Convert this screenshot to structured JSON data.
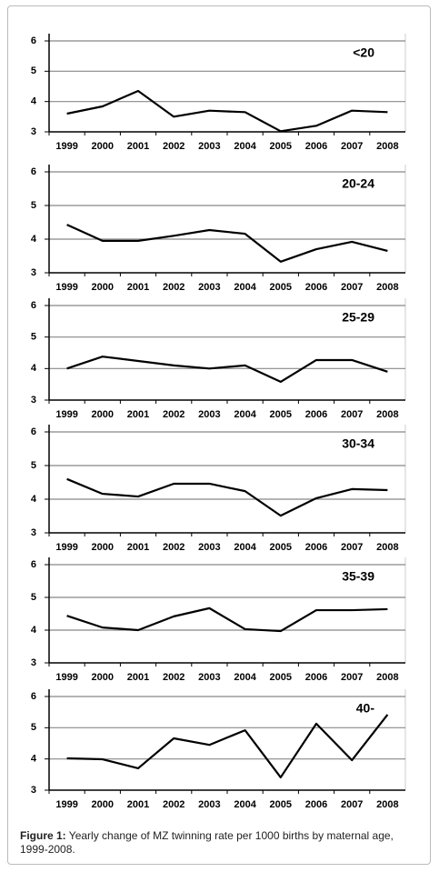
{
  "chart_data": [
    {
      "type": "line",
      "title": "<20",
      "categories": [
        "1999",
        "2000",
        "2001",
        "2002",
        "2003",
        "2004",
        "2005",
        "2006",
        "2007",
        "2008"
      ],
      "values": [
        3.6,
        3.84,
        4.35,
        3.5,
        3.7,
        3.65,
        3.02,
        3.2,
        3.7,
        3.65
      ],
      "color": "#000000",
      "ylim": [
        3,
        6
      ],
      "yticks": [
        3,
        4,
        5,
        6
      ],
      "grid": true
    },
    {
      "type": "line",
      "title": "20-24",
      "categories": [
        "1999",
        "2000",
        "2001",
        "2002",
        "2003",
        "2004",
        "2005",
        "2006",
        "2007",
        "2008"
      ],
      "values": [
        4.43,
        3.95,
        3.95,
        4.1,
        4.27,
        4.16,
        3.33,
        3.7,
        3.92,
        3.65
      ],
      "color": "#000000",
      "ylim": [
        3,
        6
      ],
      "yticks": [
        3,
        4,
        5,
        6
      ],
      "grid": true
    },
    {
      "type": "line",
      "title": "25-29",
      "categories": [
        "1999",
        "2000",
        "2001",
        "2002",
        "2003",
        "2004",
        "2005",
        "2006",
        "2007",
        "2008"
      ],
      "values": [
        4.0,
        4.38,
        4.24,
        4.1,
        4.0,
        4.1,
        3.58,
        4.27,
        4.27,
        3.9
      ],
      "color": "#000000",
      "ylim": [
        3,
        6
      ],
      "yticks": [
        3,
        4,
        5,
        6
      ],
      "grid": true
    },
    {
      "type": "line",
      "title": "30-34",
      "categories": [
        "1999",
        "2000",
        "2001",
        "2002",
        "2003",
        "2004",
        "2005",
        "2006",
        "2007",
        "2008"
      ],
      "values": [
        4.6,
        4.16,
        4.08,
        4.46,
        4.46,
        4.24,
        3.51,
        4.03,
        4.3,
        4.27
      ],
      "color": "#000000",
      "ylim": [
        3,
        6
      ],
      "yticks": [
        3,
        4,
        5,
        6
      ],
      "grid": true
    },
    {
      "type": "line",
      "title": "35-39",
      "categories": [
        "1999",
        "2000",
        "2001",
        "2002",
        "2003",
        "2004",
        "2005",
        "2006",
        "2007",
        "2008"
      ],
      "values": [
        4.44,
        4.08,
        4.0,
        4.42,
        4.67,
        4.03,
        3.97,
        4.61,
        4.61,
        4.64
      ],
      "color": "#000000",
      "ylim": [
        3,
        6
      ],
      "yticks": [
        3,
        4,
        5,
        6
      ],
      "grid": true
    },
    {
      "type": "line",
      "title": "40-",
      "categories": [
        "1999",
        "2000",
        "2001",
        "2002",
        "2003",
        "2004",
        "2005",
        "2006",
        "2007",
        "2008"
      ],
      "values": [
        4.02,
        3.99,
        3.7,
        4.66,
        4.45,
        4.92,
        3.41,
        5.13,
        3.96,
        5.42
      ],
      "color": "#000000",
      "ylim": [
        3,
        6
      ],
      "yticks": [
        3,
        4,
        5,
        6
      ],
      "grid": true
    }
  ],
  "caption": {
    "label": "Figure 1:",
    "text": "Yearly change of MZ twinning rate per 1000 births by maternal age, 1999-2008."
  }
}
